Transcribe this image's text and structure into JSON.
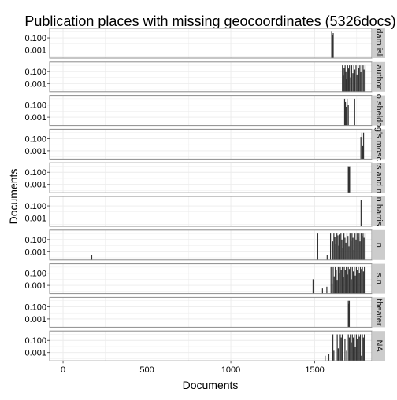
{
  "chart_data": {
    "type": "bar",
    "title": "Publication places with missing geocoordinates (5326docs)",
    "xlabel": "Documents",
    "ylabel": "Documents",
    "y_scale": "log10",
    "xlim": [
      -80,
      1840
    ],
    "x_ticks": [
      0,
      500,
      1000,
      1500
    ],
    "y_ticks": [
      {
        "value": 0.1,
        "label": "0.100"
      },
      {
        "value": 0.001,
        "label": "0.001"
      }
    ],
    "grid": true,
    "facets": [
      {
        "strip": "dam isli",
        "bars": [
          [
            1601,
            1.0
          ],
          [
            1604,
            0.08
          ],
          [
            1607,
            0.3
          ],
          [
            1610,
            0.6
          ]
        ]
      },
      {
        "strip": "author",
        "bars": [
          [
            1665,
            1.0
          ],
          [
            1670,
            0.02
          ],
          [
            1675,
            0.4
          ],
          [
            1681,
            1.0
          ],
          [
            1686,
            0.1
          ],
          [
            1690,
            0.005
          ],
          [
            1696,
            1.0
          ],
          [
            1702,
            0.3
          ],
          [
            1707,
            1.0
          ],
          [
            1714,
            0.01
          ],
          [
            1720,
            1.0
          ],
          [
            1727,
            0.05
          ],
          [
            1733,
            1.0
          ],
          [
            1739,
            0.2
          ],
          [
            1746,
            1.0
          ],
          [
            1752,
            0.03
          ],
          [
            1758,
            1.0
          ],
          [
            1763,
            0.4
          ],
          [
            1769,
            1.0
          ],
          [
            1775,
            0.08
          ],
          [
            1781,
            1.0
          ],
          [
            1788,
            1.0
          ],
          [
            1794,
            0.2
          ],
          [
            1800,
            1.0
          ]
        ]
      },
      {
        "strip": "o sheldo",
        "bars": [
          [
            1678,
            1.0
          ],
          [
            1683,
            0.3
          ],
          [
            1688,
            0.05
          ],
          [
            1693,
            1.0
          ],
          [
            1700,
            0.1
          ],
          [
            1738,
            1.0
          ]
        ]
      },
      {
        "strip": "g's mosc",
        "bars": [
          [
            1775,
            0.2
          ],
          [
            1781,
            1.0
          ],
          [
            1786,
            0.006
          ],
          [
            1791,
            1.0
          ]
        ]
      },
      {
        "strip": "rs and n",
        "bars": [
          [
            1700,
            1.0
          ],
          [
            1702,
            0.0006
          ],
          [
            1704,
            0.8
          ],
          [
            1706,
            0.3
          ],
          [
            1708,
            1.0
          ]
        ]
      },
      {
        "strip": "n harris",
        "bars": [
          [
            1776,
            1.0
          ]
        ]
      },
      {
        "strip": "n",
        "bars": [
          [
            171,
            0.0003
          ],
          [
            1518,
            1.0
          ],
          [
            1574,
            0.0003
          ],
          [
            1594,
            1.0
          ],
          [
            1607,
            0.05
          ],
          [
            1614,
            1.0
          ],
          [
            1620,
            0.3
          ],
          [
            1626,
            0.02
          ],
          [
            1632,
            1.0
          ],
          [
            1638,
            0.5
          ],
          [
            1644,
            0.01
          ],
          [
            1650,
            0.7
          ],
          [
            1656,
            1.0
          ],
          [
            1662,
            0.1
          ],
          [
            1668,
            0.004
          ],
          [
            1674,
            1.0
          ],
          [
            1680,
            0.2
          ],
          [
            1686,
            0.03
          ],
          [
            1692,
            1.0
          ],
          [
            1698,
            0.4
          ],
          [
            1704,
            0.008
          ],
          [
            1710,
            1.0
          ],
          [
            1716,
            0.06
          ],
          [
            1722,
            1.0
          ],
          [
            1728,
            0.2
          ],
          [
            1734,
            0.002
          ],
          [
            1740,
            1.0
          ],
          [
            1746,
            0.1
          ],
          [
            1752,
            1.0
          ],
          [
            1758,
            0.3
          ],
          [
            1764,
            1.0
          ],
          [
            1770,
            0.05
          ],
          [
            1776,
            1.0
          ],
          [
            1782,
            0.4
          ],
          [
            1788,
            1.0
          ],
          [
            1794,
            0.2
          ],
          [
            1800,
            1.0
          ]
        ]
      },
      {
        "strip": "s.n",
        "bars": [
          [
            1490,
            0.01
          ],
          [
            1546,
            0.0003
          ],
          [
            1572,
            0.0006
          ],
          [
            1597,
            1.0
          ],
          [
            1603,
            0.002
          ],
          [
            1610,
            1.0
          ],
          [
            1616,
            0.03
          ],
          [
            1622,
            1.0
          ],
          [
            1628,
            0.4
          ],
          [
            1634,
            0.008
          ],
          [
            1640,
            1.0
          ],
          [
            1646,
            0.1
          ],
          [
            1652,
            1.0
          ],
          [
            1658,
            0.3
          ],
          [
            1664,
            1.0
          ],
          [
            1670,
            0.02
          ],
          [
            1676,
            1.0
          ],
          [
            1682,
            0.3
          ],
          [
            1688,
            1.0
          ],
          [
            1694,
            0.06
          ],
          [
            1700,
            1.0
          ],
          [
            1706,
            0.5
          ],
          [
            1712,
            1.0
          ],
          [
            1718,
            0.01
          ],
          [
            1724,
            1.0
          ],
          [
            1730,
            0.2
          ],
          [
            1736,
            1.0
          ],
          [
            1742,
            0.04
          ],
          [
            1748,
            1.0
          ],
          [
            1754,
            0.3
          ],
          [
            1760,
            1.0
          ],
          [
            1766,
            0.1
          ],
          [
            1772,
            1.0
          ],
          [
            1778,
            0.5
          ],
          [
            1784,
            1.0
          ],
          [
            1790,
            0.2
          ],
          [
            1796,
            1.0
          ],
          [
            1800,
            1.0
          ]
        ]
      },
      {
        "strip": "theater",
        "bars": [
          [
            1700,
            1.0
          ],
          [
            1703,
            0.3
          ],
          [
            1706,
            1.0
          ]
        ]
      },
      {
        "strip": "NA",
        "bars": [
          [
            1562,
            0.0003
          ],
          [
            1584,
            0.0006
          ],
          [
            1608,
            1.0
          ],
          [
            1614,
            0.002
          ],
          [
            1634,
            1.0
          ],
          [
            1640,
            0.005
          ],
          [
            1652,
            1.0
          ],
          [
            1658,
            0.3
          ],
          [
            1664,
            1.0
          ],
          [
            1680,
            0.2
          ],
          [
            1690,
            0.002
          ],
          [
            1700,
            1.0
          ],
          [
            1706,
            0.3
          ],
          [
            1712,
            1.0
          ],
          [
            1718,
            0.05
          ],
          [
            1724,
            1.0
          ],
          [
            1730,
            0.3
          ],
          [
            1736,
            1.0
          ],
          [
            1742,
            0.01
          ],
          [
            1748,
            1.0
          ],
          [
            1754,
            0.2
          ],
          [
            1760,
            1.0
          ],
          [
            1766,
            0.4
          ],
          [
            1772,
            1.0
          ],
          [
            1778,
            0.0003
          ],
          [
            1784,
            1.0
          ],
          [
            1790,
            0.3
          ],
          [
            1796,
            1.0
          ]
        ]
      }
    ]
  },
  "colors": {
    "bar": "#333333",
    "panel_background": "#ffffff",
    "panel_border": "#8c8c8c",
    "grid": "#ebebeb",
    "strip_background": "#cccccc",
    "strip_text": "#1a1a1a",
    "axis_text": "#000000"
  }
}
